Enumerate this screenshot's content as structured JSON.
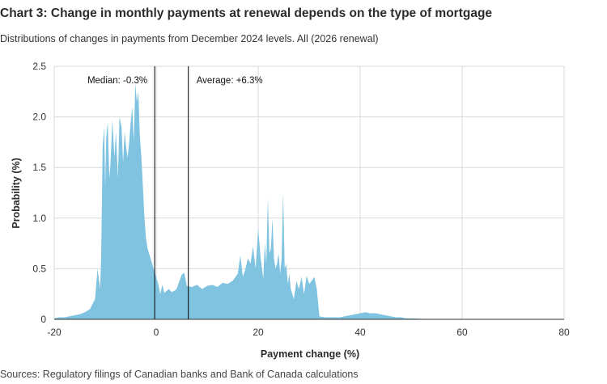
{
  "header": {
    "title": "Chart 3: Change in monthly payments at renewal depends on the type of mortgage",
    "subtitle": "Distributions of changes in payments from December 2024 levels. All (2026 renewal)"
  },
  "footer": {
    "source": "Sources: Regulatory filings of Canadian banks and Bank of Canada calculations"
  },
  "colors": {
    "area_fill": "#7fc3e0",
    "marker_line": "#000000",
    "grid": "#d9d9d9",
    "axis": "#333333"
  },
  "chart_data": {
    "type": "area",
    "title": "Chart 3: Change in monthly payments at renewal depends on the type of mortgage",
    "subtitle": "Distributions of changes in payments from December 2024 levels. All (2026 renewal)",
    "xlabel": "Payment change (%)",
    "ylabel": "Probability (%)",
    "xlim": [
      -20,
      80
    ],
    "ylim": [
      0,
      2.5
    ],
    "xticks": [
      "-20",
      "0",
      "20",
      "40",
      "60",
      "80"
    ],
    "yticks": [
      "0",
      "0.5",
      "1.0",
      "1.5",
      "2.0",
      "2.5"
    ],
    "grid": true,
    "legend": "none",
    "annotations": [
      {
        "label": "Median: -0.3%",
        "x": -0.3,
        "label_side": "left"
      },
      {
        "label": "Average: +6.3%",
        "x": 6.3,
        "label_side": "right"
      }
    ],
    "x": [
      -20,
      -19,
      -18,
      -17,
      -16,
      -15,
      -14,
      -13,
      -12,
      -11.5,
      -11,
      -10.8,
      -10.5,
      -10.2,
      -10,
      -9.8,
      -9.5,
      -9.2,
      -9,
      -8.6,
      -8.2,
      -7.9,
      -7.5,
      -7.2,
      -6.8,
      -6.5,
      -6.2,
      -5.9,
      -5.6,
      -5.3,
      -5,
      -4.7,
      -4.4,
      -4.1,
      -3.8,
      -3.5,
      -3.2,
      -2.9,
      -2.6,
      -2.3,
      -2,
      -1.7,
      -1.4,
      -1.1,
      -0.8,
      -0.5,
      -0.2,
      0.1,
      0.4,
      0.8,
      1.2,
      1.6,
      2,
      2.5,
      3,
      3.5,
      4,
      4.5,
      5,
      5.5,
      6,
      7,
      8,
      9,
      10,
      11,
      12,
      13,
      14,
      15,
      16,
      16.5,
      17,
      17.5,
      18,
      18.5,
      19,
      19.5,
      20,
      20.5,
      21,
      21.3,
      21.6,
      21.9,
      22.2,
      22.5,
      22.8,
      23.1,
      23.4,
      23.7,
      24,
      24.3,
      24.6,
      24.9,
      25.2,
      25.5,
      25.8,
      26.1,
      26.4,
      26.7,
      27,
      27.5,
      28,
      28.5,
      29,
      29.5,
      30,
      30.5,
      31,
      31.5,
      32,
      33,
      34,
      35,
      36,
      37,
      38,
      39,
      40,
      41,
      42,
      43,
      44,
      45,
      46,
      47,
      48,
      49,
      50,
      52,
      55,
      60,
      70,
      80
    ],
    "y": [
      0.01,
      0.02,
      0.02,
      0.03,
      0.04,
      0.05,
      0.07,
      0.1,
      0.2,
      0.5,
      0.3,
      0.6,
      1.7,
      1.9,
      1.3,
      1.8,
      1.95,
      1.4,
      1.5,
      1.97,
      1.6,
      1.85,
      1.4,
      2.0,
      1.9,
      1.55,
      1.85,
      1.7,
      1.6,
      1.75,
      1.95,
      2.1,
      1.75,
      2.33,
      2.15,
      2.25,
      1.8,
      1.6,
      1.3,
      1.0,
      0.8,
      0.7,
      0.65,
      0.6,
      0.55,
      0.5,
      0.45,
      0.4,
      0.35,
      0.25,
      0.34,
      0.26,
      0.28,
      0.3,
      0.27,
      0.28,
      0.3,
      0.37,
      0.44,
      0.46,
      0.33,
      0.32,
      0.34,
      0.3,
      0.33,
      0.34,
      0.32,
      0.36,
      0.35,
      0.38,
      0.45,
      0.63,
      0.42,
      0.5,
      0.6,
      0.55,
      0.72,
      0.5,
      0.9,
      0.6,
      0.4,
      0.75,
      0.55,
      1.2,
      0.65,
      0.7,
      1.0,
      0.6,
      0.5,
      0.55,
      0.65,
      0.45,
      0.6,
      1.25,
      0.5,
      0.55,
      0.35,
      0.45,
      0.3,
      0.25,
      0.2,
      0.38,
      0.3,
      0.42,
      0.25,
      0.43,
      0.35,
      0.38,
      0.42,
      0.3,
      0.03,
      0.02,
      0.02,
      0.02,
      0.02,
      0.03,
      0.04,
      0.05,
      0.06,
      0.07,
      0.06,
      0.06,
      0.05,
      0.04,
      0.03,
      0.02,
      0.02,
      0.01,
      0.01,
      0.005,
      0.003,
      0.001,
      0,
      0
    ]
  }
}
